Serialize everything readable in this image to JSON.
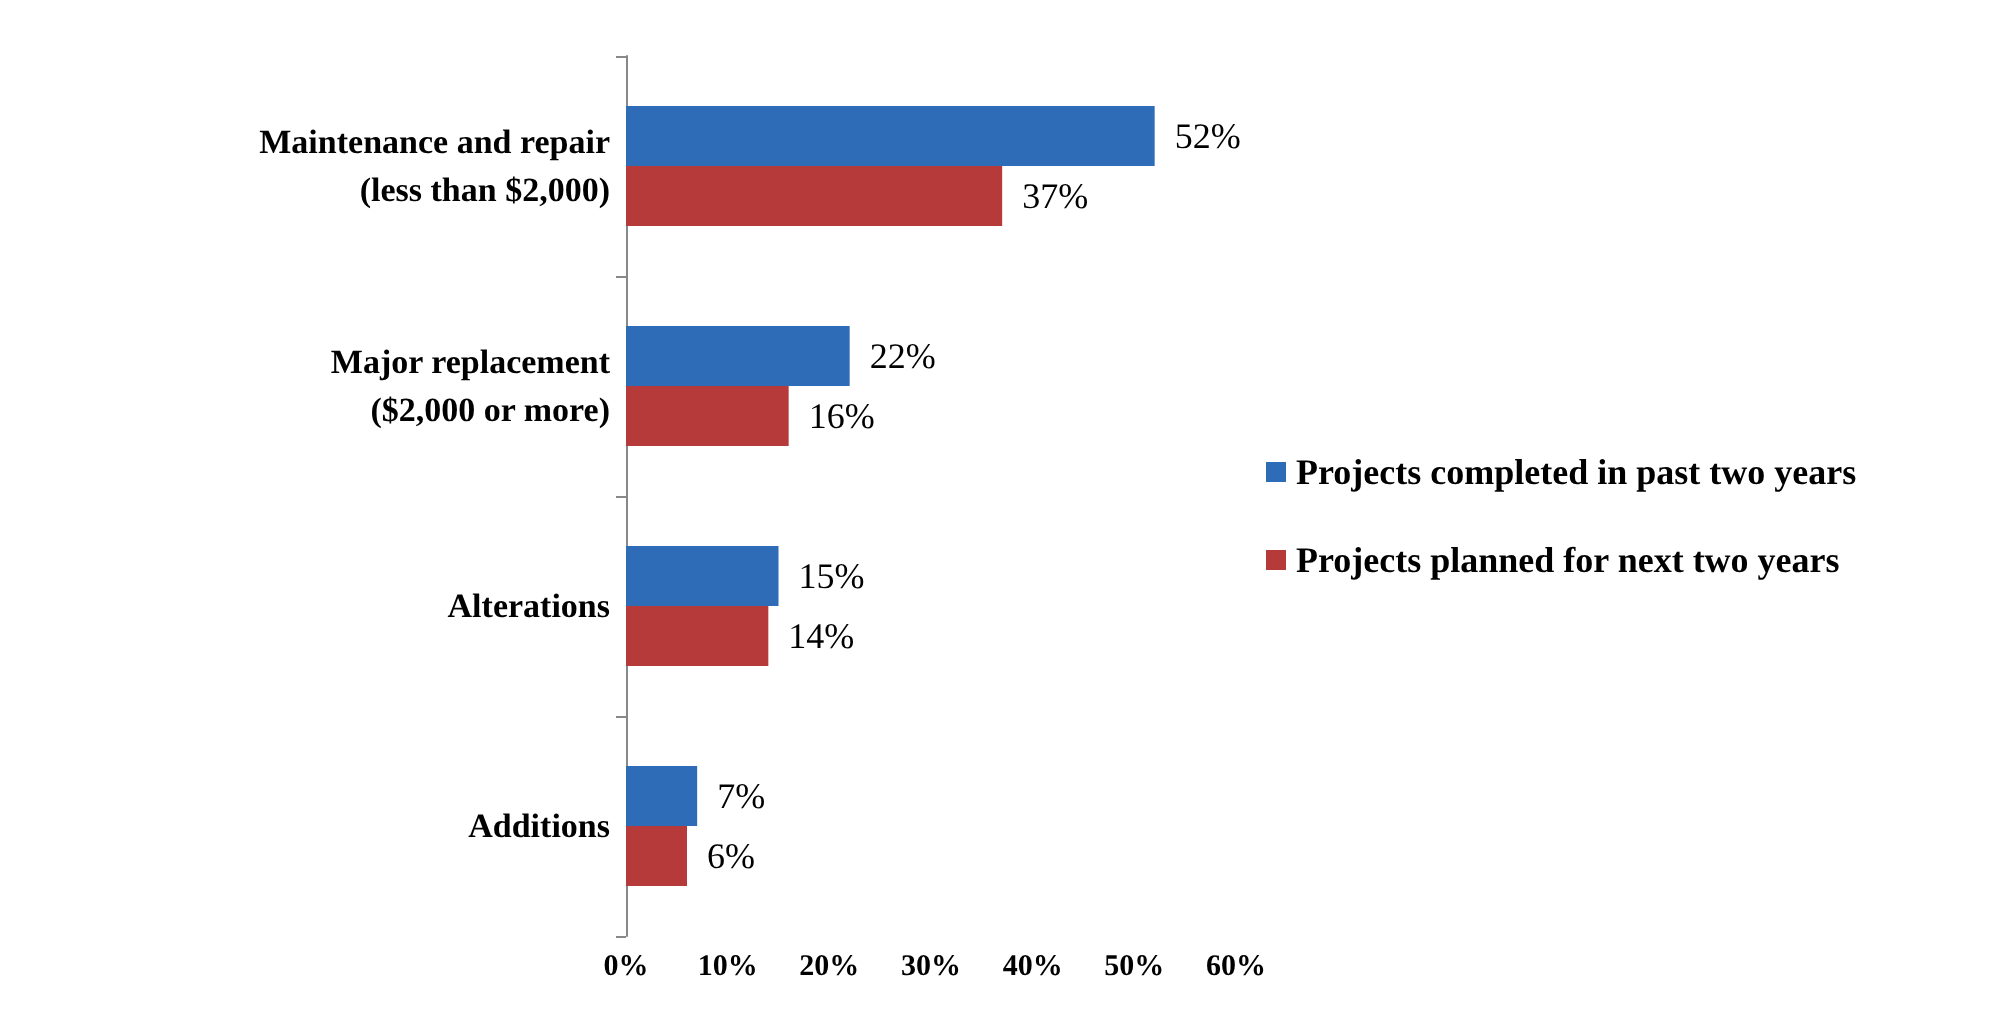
{
  "chart_data": {
    "type": "bar",
    "orientation": "horizontal",
    "categories": [
      "Maintenance and repair\n(less than $2,000)",
      "Major replacement\n($2,000 or more)",
      "Alterations",
      "Additions"
    ],
    "series": [
      {
        "name": "Projects completed in past two years",
        "color": "#2f6cb8",
        "values": [
          52,
          22,
          15,
          7
        ],
        "value_labels": [
          "52%",
          "22%",
          "15%",
          "7%"
        ]
      },
      {
        "name": "Projects planned for next two years",
        "color": "#b73a3a",
        "values": [
          37,
          16,
          14,
          6
        ],
        "value_labels": [
          "37%",
          "16%",
          "14%",
          "6%"
        ]
      }
    ],
    "xlim": [
      0,
      60
    ],
    "xticks": [
      {
        "value": 0,
        "label": "0%"
      },
      {
        "value": 10,
        "label": "10%"
      },
      {
        "value": 20,
        "label": "20%"
      },
      {
        "value": 30,
        "label": "30%"
      },
      {
        "value": 40,
        "label": "40%"
      },
      {
        "value": 50,
        "label": "50%"
      },
      {
        "value": 60,
        "label": "60%"
      }
    ],
    "grid": false,
    "legend": "right"
  }
}
